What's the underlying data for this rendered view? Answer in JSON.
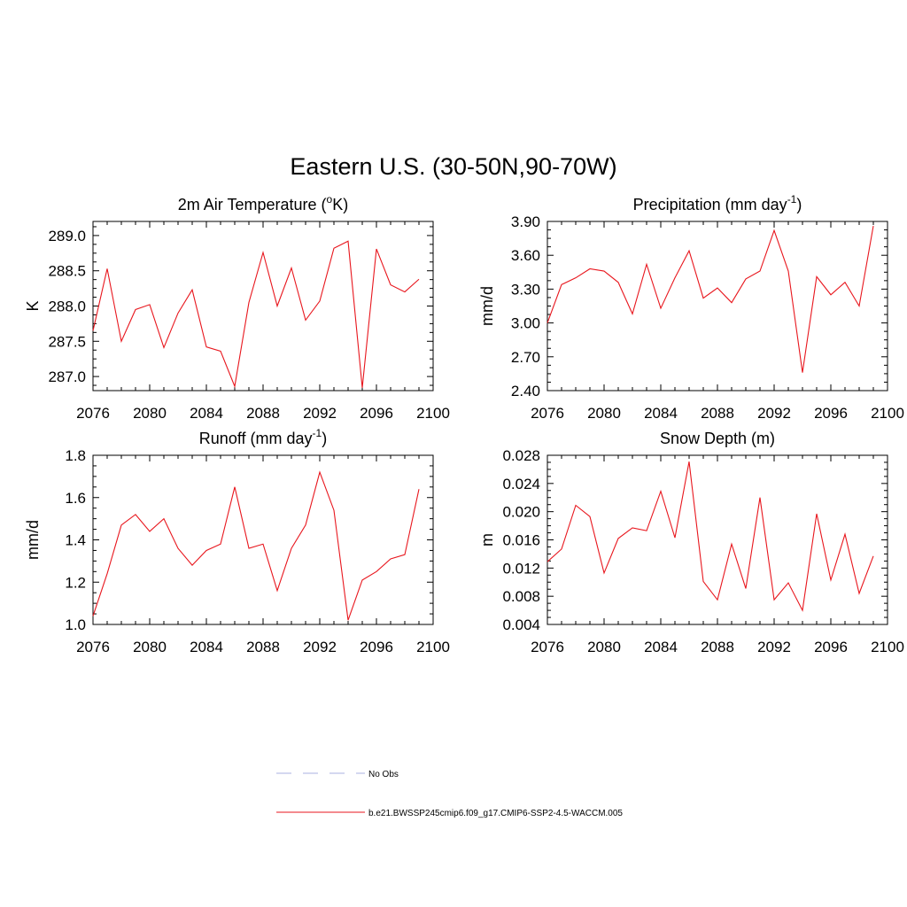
{
  "figure": {
    "title": "Eastern U.S. (30-50N,90-70W)"
  },
  "colors": {
    "series": "#e8161d",
    "obs": "#aab0e0",
    "axis": "#000000"
  },
  "legend": {
    "position": "bottom-center",
    "entries": [
      {
        "label": "No Obs",
        "style": "dashed"
      },
      {
        "label": "b.e21.BWSSP245cmip6.f09_g17.CMIP6-SSP2-4.5-WACCM.005",
        "style": "solid"
      }
    ]
  },
  "chart_data": [
    {
      "type": "line",
      "title": "2m Air Temperature (",
      "title_sup": "o",
      "title_after": "K)",
      "ylabel": "K",
      "xlim": [
        2076,
        2100
      ],
      "ylim": [
        286.8,
        289.2
      ],
      "yticks": [
        "287.0",
        "287.5",
        "288.0",
        "288.5",
        "289.0"
      ],
      "ytick_values": [
        287.0,
        287.5,
        288.0,
        288.5,
        289.0
      ],
      "xticks": [
        "2076",
        "2080",
        "2084",
        "2088",
        "2092",
        "2096",
        "2100"
      ],
      "x": [
        2076,
        2077,
        2078,
        2079,
        2080,
        2081,
        2082,
        2083,
        2084,
        2085,
        2086,
        2087,
        2088,
        2089,
        2090,
        2091,
        2092,
        2093,
        2094,
        2095,
        2096,
        2097,
        2098,
        2099
      ],
      "series": [
        {
          "name": "b.e21.BWSSP245cmip6.f09_g17.CMIP6-SSP2-4.5-WACCM.005",
          "values": [
            287.65,
            288.53,
            287.5,
            287.95,
            288.02,
            287.41,
            287.9,
            288.23,
            287.42,
            287.36,
            286.86,
            288.05,
            288.76,
            288.0,
            288.54,
            287.8,
            288.07,
            288.82,
            288.92,
            286.84,
            288.81,
            288.3,
            288.2,
            288.38
          ]
        }
      ]
    },
    {
      "type": "line",
      "title": "Precipitation (mm day",
      "title_sup": "-1",
      "title_after": ")",
      "ylabel": "mm/d",
      "xlim": [
        2076,
        2100
      ],
      "ylim": [
        2.4,
        3.9
      ],
      "yticks": [
        "2.40",
        "2.70",
        "3.00",
        "3.30",
        "3.60",
        "3.90"
      ],
      "ytick_values": [
        2.4,
        2.7,
        3.0,
        3.3,
        3.6,
        3.9
      ],
      "xticks": [
        "2076",
        "2080",
        "2084",
        "2088",
        "2092",
        "2096",
        "2100"
      ],
      "x": [
        2076,
        2077,
        2078,
        2079,
        2080,
        2081,
        2082,
        2083,
        2084,
        2085,
        2086,
        2087,
        2088,
        2089,
        2090,
        2091,
        2092,
        2093,
        2094,
        2095,
        2096,
        2097,
        2098,
        2099
      ],
      "series": [
        {
          "name": "b.e21.BWSSP245cmip6.f09_g17.CMIP6-SSP2-4.5-WACCM.005",
          "values": [
            3.0,
            3.34,
            3.4,
            3.48,
            3.46,
            3.36,
            3.08,
            3.52,
            3.13,
            3.4,
            3.64,
            3.22,
            3.31,
            3.18,
            3.39,
            3.46,
            3.82,
            3.46,
            2.56,
            3.41,
            3.25,
            3.36,
            3.15,
            3.86
          ]
        }
      ]
    },
    {
      "type": "line",
      "title": "Runoff (mm day",
      "title_sup": "-1",
      "title_after": ")",
      "ylabel": "mm/d",
      "xlim": [
        2076,
        2100
      ],
      "ylim": [
        1.0,
        1.8
      ],
      "yticks": [
        "1.0",
        "1.2",
        "1.4",
        "1.6",
        "1.8"
      ],
      "ytick_values": [
        1.0,
        1.2,
        1.4,
        1.6,
        1.8
      ],
      "xticks": [
        "2076",
        "2080",
        "2084",
        "2088",
        "2092",
        "2096",
        "2100"
      ],
      "x": [
        2076,
        2077,
        2078,
        2079,
        2080,
        2081,
        2082,
        2083,
        2084,
        2085,
        2086,
        2087,
        2088,
        2089,
        2090,
        2091,
        2092,
        2093,
        2094,
        2095,
        2096,
        2097,
        2098,
        2099
      ],
      "series": [
        {
          "name": "b.e21.BWSSP245cmip6.f09_g17.CMIP6-SSP2-4.5-WACCM.005",
          "values": [
            1.04,
            1.24,
            1.47,
            1.52,
            1.44,
            1.5,
            1.36,
            1.28,
            1.35,
            1.38,
            1.65,
            1.36,
            1.38,
            1.16,
            1.36,
            1.47,
            1.72,
            1.54,
            1.02,
            1.21,
            1.25,
            1.31,
            1.33,
            1.64
          ]
        }
      ]
    },
    {
      "type": "line",
      "title": "Snow Depth (m)",
      "title_sup": "",
      "title_after": "",
      "ylabel": "m",
      "xlim": [
        2076,
        2100
      ],
      "ylim": [
        0.004,
        0.028
      ],
      "yticks": [
        "0.004",
        "0.008",
        "0.012",
        "0.016",
        "0.020",
        "0.024",
        "0.028"
      ],
      "ytick_values": [
        0.004,
        0.008,
        0.012,
        0.016,
        0.02,
        0.024,
        0.028
      ],
      "xticks": [
        "2076",
        "2080",
        "2084",
        "2088",
        "2092",
        "2096",
        "2100"
      ],
      "x": [
        2076,
        2077,
        2078,
        2079,
        2080,
        2081,
        2082,
        2083,
        2084,
        2085,
        2086,
        2087,
        2088,
        2089,
        2090,
        2091,
        2092,
        2093,
        2094,
        2095,
        2096,
        2097,
        2098,
        2099
      ],
      "series": [
        {
          "name": "b.e21.BWSSP245cmip6.f09_g17.CMIP6-SSP2-4.5-WACCM.005",
          "values": [
            0.0129,
            0.0147,
            0.0209,
            0.0193,
            0.0113,
            0.0162,
            0.0177,
            0.0173,
            0.0229,
            0.0163,
            0.0271,
            0.0101,
            0.0075,
            0.0154,
            0.0091,
            0.022,
            0.0075,
            0.0099,
            0.006,
            0.0197,
            0.0103,
            0.0168,
            0.0084,
            0.0137
          ]
        }
      ]
    }
  ]
}
